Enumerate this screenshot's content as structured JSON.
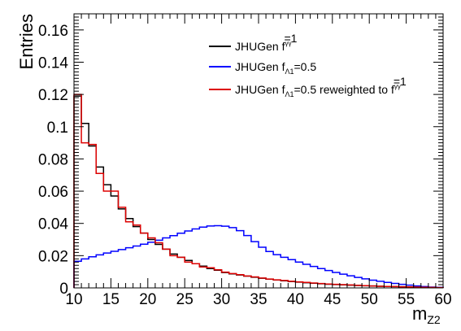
{
  "chart_data": {
    "type": "line",
    "title": "",
    "xlabel": "m",
    "xlabel_subscript": "Z2",
    "ylabel": "Entries",
    "xlim": [
      10,
      60
    ],
    "ylim": [
      0,
      0.17
    ],
    "xticks": [
      "10",
      "15",
      "20",
      "25",
      "30",
      "35",
      "40",
      "45",
      "50",
      "55",
      "60"
    ],
    "yticks": [
      "0",
      "0.02",
      "0.04",
      "0.06",
      "0.08",
      "0.1",
      "0.12",
      "0.14",
      "0.16"
    ],
    "grid": false,
    "legend_position": "top-right",
    "bin_edges": [
      10,
      11,
      12,
      13,
      14,
      15,
      16,
      17,
      18,
      19,
      20,
      21,
      22,
      23,
      24,
      25,
      26,
      27,
      28,
      29,
      30,
      31,
      32,
      33,
      34,
      35,
      36,
      37,
      38,
      39,
      40,
      41,
      42,
      43,
      44,
      45,
      46,
      47,
      48,
      49,
      50,
      51,
      52,
      53,
      54,
      55,
      56,
      57,
      58,
      59,
      60
    ],
    "series": [
      {
        "name": "JHUGen f",
        "sub": "a3",
        "sup": "γγ",
        "suffix": "=1",
        "color": "#000000",
        "values": [
          0.119,
          0.102,
          0.088,
          0.075,
          0.064,
          0.057,
          0.049,
          0.043,
          0.038,
          0.034,
          0.03,
          0.027,
          0.024,
          0.021,
          0.019,
          0.017,
          0.015,
          0.0135,
          0.012,
          0.011,
          0.0095,
          0.0087,
          0.008,
          0.0073,
          0.0066,
          0.006,
          0.0054,
          0.0049,
          0.0044,
          0.004,
          0.0036,
          0.0032,
          0.0029,
          0.0026,
          0.0023,
          0.0021,
          0.0019,
          0.0017,
          0.0015,
          0.0013,
          0.0012,
          0.001,
          0.0009,
          0.0008,
          0.0007,
          0.0006,
          0.0005,
          0.0004,
          0.0003,
          0.0002
        ]
      },
      {
        "name": "JHUGen f",
        "sub": "Λ1",
        "sup": "",
        "suffix": "=0.5",
        "color": "#0000ff",
        "values": [
          0.0165,
          0.018,
          0.0193,
          0.0205,
          0.0216,
          0.0227,
          0.0238,
          0.0249,
          0.026,
          0.0271,
          0.0283,
          0.0296,
          0.031,
          0.0324,
          0.0339,
          0.0353,
          0.0366,
          0.0377,
          0.0384,
          0.0386,
          0.0383,
          0.0374,
          0.0355,
          0.0325,
          0.0287,
          0.0252,
          0.0226,
          0.0206,
          0.019,
          0.0175,
          0.016,
          0.0146,
          0.0133,
          0.012,
          0.0108,
          0.0096,
          0.0085,
          0.0075,
          0.0065,
          0.0056,
          0.0048,
          0.0041,
          0.0034,
          0.0028,
          0.0022,
          0.0017,
          0.0012,
          0.0008,
          0.0005,
          0.0003
        ]
      },
      {
        "name": "JHUGen f",
        "sub": "Λ1",
        "sup": "",
        "suffix": "=0.5 reweighted to f",
        "sub2": "a3",
        "sup2": "γγ",
        "suffix2": "=1",
        "color": "#dd0000",
        "values": [
          0.12,
          0.09,
          0.089,
          0.071,
          0.06,
          0.06,
          0.05,
          0.041,
          0.039,
          0.034,
          0.031,
          0.028,
          0.024,
          0.02,
          0.019,
          0.016,
          0.015,
          0.013,
          0.0125,
          0.0112,
          0.0098,
          0.0089,
          0.0082,
          0.0074,
          0.0068,
          0.0061,
          0.0055,
          0.005,
          0.0046,
          0.0041,
          0.0037,
          0.0034,
          0.003,
          0.0027,
          0.0024,
          0.0022,
          0.002,
          0.0018,
          0.0016,
          0.0014,
          0.0012,
          0.001,
          0.0009,
          0.0008,
          0.0007,
          0.0006,
          0.0005,
          0.0004,
          0.0003,
          0.0002
        ]
      }
    ]
  }
}
